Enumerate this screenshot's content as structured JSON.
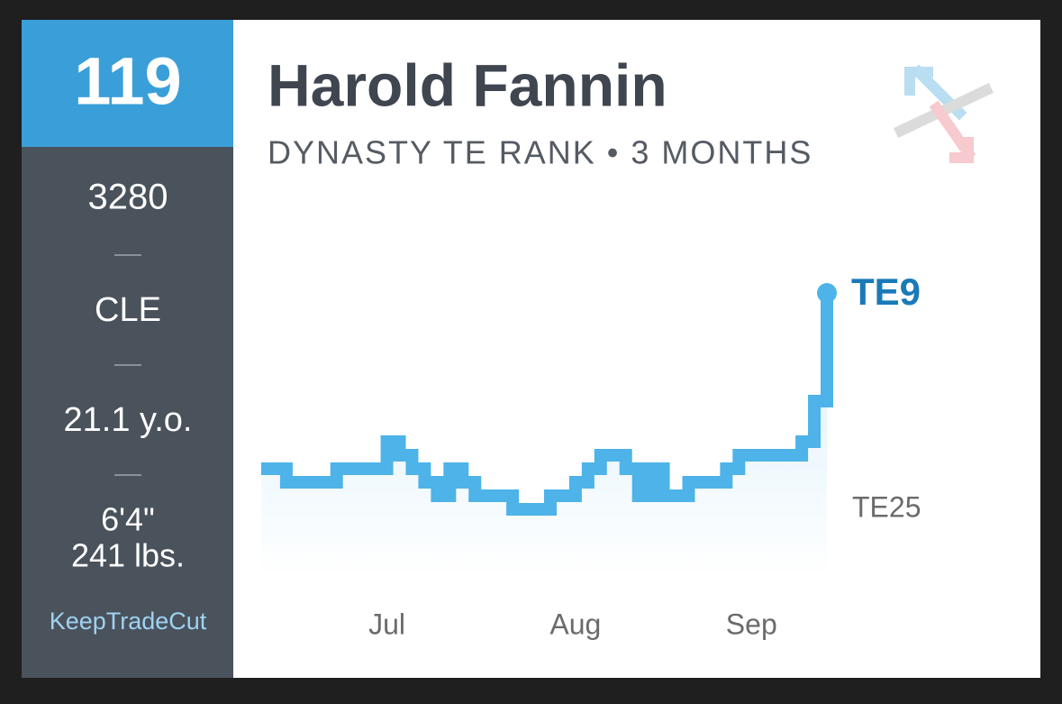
{
  "sidebar": {
    "rank": "119",
    "value": "3280",
    "team": "CLE",
    "age": "21.1 y.o.",
    "height": "6'4\"",
    "weight": "241 lbs.",
    "brand": "KeepTradeCut"
  },
  "chart_data": {
    "type": "line",
    "title": "Harold Fannin",
    "subtitle": "DYNASTY TE RANK • 3 MONTHS",
    "categories": [
      null,
      null,
      null,
      null,
      null,
      null,
      null,
      null,
      null,
      null,
      "Jul",
      null,
      null,
      null,
      null,
      null,
      null,
      null,
      null,
      null,
      null,
      null,
      null,
      null,
      null,
      "Aug",
      null,
      null,
      null,
      null,
      null,
      null,
      null,
      null,
      null,
      null,
      null,
      null,
      null,
      "Sep",
      null,
      null,
      null,
      null,
      null,
      null
    ],
    "values": [
      22,
      22,
      23,
      23,
      23,
      23,
      22,
      22,
      22,
      22,
      20,
      21,
      22,
      23,
      24,
      22,
      23,
      24,
      24,
      24,
      25,
      25,
      25,
      24,
      24,
      23,
      22,
      21,
      21,
      22,
      24,
      22,
      24,
      24,
      23,
      23,
      23,
      22,
      21,
      21,
      21,
      21,
      21,
      20,
      17,
      9
    ],
    "value_labels": [
      null,
      null,
      null,
      null,
      null,
      null,
      null,
      null,
      null,
      null,
      null,
      null,
      null,
      null,
      null,
      null,
      null,
      null,
      null,
      null,
      null,
      null,
      null,
      null,
      null,
      null,
      null,
      null,
      null,
      null,
      null,
      null,
      null,
      null,
      null,
      null,
      null,
      null,
      null,
      null,
      null,
      null,
      null,
      null,
      null,
      "TE9"
    ],
    "color": "#4db3e8",
    "ylim": [
      30,
      8
    ],
    "yticks": [
      {
        "value": 25,
        "label": "TE25"
      }
    ],
    "grid": false
  }
}
